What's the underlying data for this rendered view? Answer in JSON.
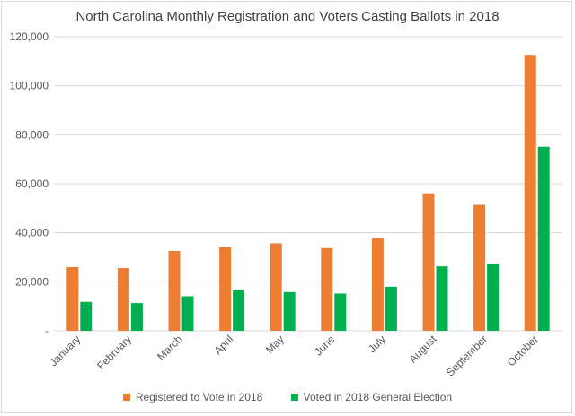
{
  "chart_data": {
    "type": "bar",
    "title": "North Carolina Monthly Registration and Voters Casting Ballots in 2018",
    "categories": [
      "January",
      "February",
      "March",
      "April",
      "May",
      "June",
      "July",
      "August",
      "September",
      "October"
    ],
    "series": [
      {
        "name": "Registered to Vote in 2018",
        "color": "#ED7D31",
        "values": [
          26000,
          25600,
          32600,
          34200,
          35700,
          33700,
          37800,
          56100,
          51400,
          112600
        ]
      },
      {
        "name": "Voted in 2018 General Election",
        "color": "#00B050",
        "values": [
          11800,
          11300,
          14100,
          16700,
          15800,
          15200,
          18000,
          26300,
          27400,
          75100
        ]
      }
    ],
    "ylim": [
      0,
      120000
    ],
    "yticks": [
      0,
      20000,
      40000,
      60000,
      80000,
      100000,
      120000
    ],
    "ytick_labels": [
      "-",
      "20,000",
      "40,000",
      "60,000",
      "80,000",
      "100,000",
      "120,000"
    ],
    "xlabel": "",
    "ylabel": "",
    "grid": true,
    "legend_position": "bottom"
  }
}
